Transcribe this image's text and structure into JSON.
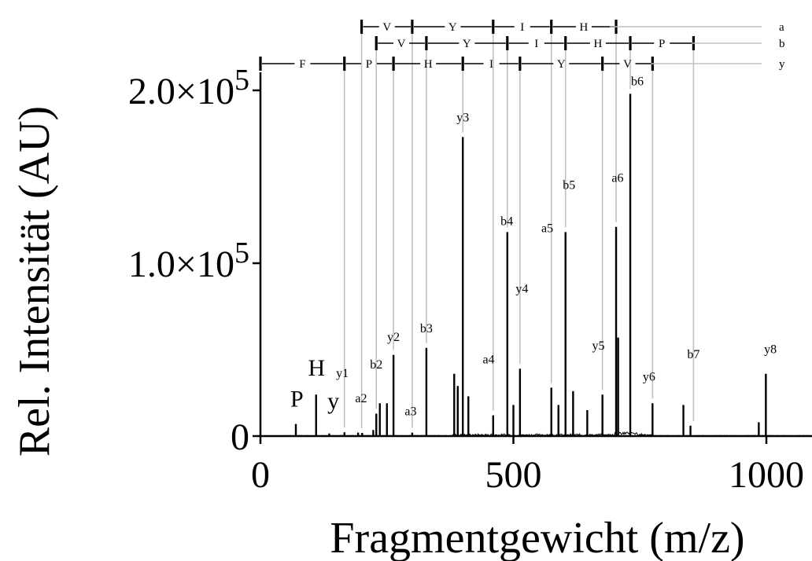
{
  "chart_data": {
    "type": "stem",
    "xlabel": "Fragmentgewicht (m/z)",
    "ylabel": "Rel. Intensität (AU)",
    "xlim": [
      0,
      1090
    ],
    "ylim": [
      0,
      200000
    ],
    "xticks": [
      {
        "value": 0,
        "label": "0"
      },
      {
        "value": 500,
        "label": "500"
      },
      {
        "value": 1000,
        "label": "1000"
      }
    ],
    "yticks": [
      {
        "value": 0,
        "label": "0"
      },
      {
        "value": 100000,
        "label": "1.0×10",
        "exp": "5"
      },
      {
        "value": 200000,
        "label": "2.0×10",
        "exp": "5"
      }
    ],
    "peaks": [
      {
        "mz": 70,
        "intensity": 7000,
        "label": "P"
      },
      {
        "mz": 110,
        "intensity": 24000,
        "label": "H"
      },
      {
        "mz": 136,
        "intensity": 1500,
        "label": "Y"
      },
      {
        "mz": 166,
        "intensity": 2200,
        "label": "y1"
      },
      {
        "mz": 193,
        "intensity": 2000,
        "label": ""
      },
      {
        "mz": 201,
        "intensity": 1800,
        "label": "a2"
      },
      {
        "mz": 223,
        "intensity": 3500,
        "label": ""
      },
      {
        "mz": 229,
        "intensity": 13000,
        "label": "b2"
      },
      {
        "mz": 236,
        "intensity": 19000,
        "label": ""
      },
      {
        "mz": 250,
        "intensity": 19000,
        "label": ""
      },
      {
        "mz": 263,
        "intensity": 47000,
        "label": "y2"
      },
      {
        "mz": 300,
        "intensity": 2000,
        "label": "a3"
      },
      {
        "mz": 328,
        "intensity": 51000,
        "label": "b3"
      },
      {
        "mz": 383,
        "intensity": 36000,
        "label": ""
      },
      {
        "mz": 390,
        "intensity": 29000,
        "label": ""
      },
      {
        "mz": 400,
        "intensity": 173000,
        "label": "y3"
      },
      {
        "mz": 411,
        "intensity": 23000,
        "label": ""
      },
      {
        "mz": 460,
        "intensity": 12000,
        "label": "a4"
      },
      {
        "mz": 488,
        "intensity": 118000,
        "label": "b4"
      },
      {
        "mz": 500,
        "intensity": 18000,
        "label": ""
      },
      {
        "mz": 513,
        "intensity": 39000,
        "label": "y4"
      },
      {
        "mz": 575,
        "intensity": 28000,
        "label": "a5"
      },
      {
        "mz": 589,
        "intensity": 18000,
        "label": ""
      },
      {
        "mz": 603,
        "intensity": 118000,
        "label": "b5"
      },
      {
        "mz": 618,
        "intensity": 26000,
        "label": ""
      },
      {
        "mz": 646,
        "intensity": 15000,
        "label": ""
      },
      {
        "mz": 676,
        "intensity": 24000,
        "label": "y5"
      },
      {
        "mz": 703,
        "intensity": 121000,
        "label": "a6"
      },
      {
        "mz": 707,
        "intensity": 57000,
        "label": ""
      },
      {
        "mz": 731,
        "intensity": 198000,
        "label": "b6"
      },
      {
        "mz": 775,
        "intensity": 19000,
        "label": "y6"
      },
      {
        "mz": 836,
        "intensity": 18000,
        "label": ""
      },
      {
        "mz": 850,
        "intensity": 6000,
        "label": "b7"
      },
      {
        "mz": 985,
        "intensity": 8000,
        "label": ""
      },
      {
        "mz": 999,
        "intensity": 36000,
        "label": "y8"
      }
    ],
    "fragment_labels": [
      {
        "text": "P",
        "mz": 72,
        "intensity": 17000,
        "big": true
      },
      {
        "text": "H",
        "mz": 111,
        "intensity": 35000,
        "big": true
      },
      {
        "text": "y",
        "mz": 144,
        "intensity": 16000,
        "big": true
      },
      {
        "text": "y1",
        "mz": 162,
        "intensity": 34000
      },
      {
        "text": "a2",
        "mz": 199,
        "intensity": 19500
      },
      {
        "text": "b2",
        "mz": 229,
        "intensity": 39000
      },
      {
        "text": "y2",
        "mz": 263,
        "intensity": 55000
      },
      {
        "text": "a3",
        "mz": 297,
        "intensity": 12000
      },
      {
        "text": "b3",
        "mz": 328,
        "intensity": 60000
      },
      {
        "text": "y3",
        "mz": 400,
        "intensity": 182000
      },
      {
        "text": "a4",
        "mz": 451,
        "intensity": 42000
      },
      {
        "text": "b4",
        "mz": 487,
        "intensity": 122000
      },
      {
        "text": "y4",
        "mz": 517,
        "intensity": 83000
      },
      {
        "text": "a5",
        "mz": 567,
        "intensity": 118000
      },
      {
        "text": "b5",
        "mz": 610,
        "intensity": 143000
      },
      {
        "text": "y5",
        "mz": 668,
        "intensity": 50000
      },
      {
        "text": "a6",
        "mz": 706,
        "intensity": 147000
      },
      {
        "text": "b6",
        "mz": 745,
        "intensity": 203000
      },
      {
        "text": "y6",
        "mz": 768,
        "intensity": 32000
      },
      {
        "text": "b7",
        "mz": 856,
        "intensity": 45000
      },
      {
        "text": "y8",
        "mz": 1008,
        "intensity": 48000
      }
    ],
    "sequence_ladders": [
      {
        "ion": "a",
        "breaks": [
          200,
          300,
          460,
          575,
          703
        ],
        "residues": [
          "V",
          "Y",
          "I",
          "H"
        ]
      },
      {
        "ion": "b",
        "breaks": [
          229,
          328,
          488,
          603,
          731,
          856
        ],
        "residues": [
          "V",
          "Y",
          "I",
          "H",
          "P"
        ]
      },
      {
        "ion": "y",
        "breaks": [
          0,
          166,
          263,
          400,
          513,
          676,
          775
        ],
        "residues": [
          "F",
          "P",
          "H",
          "I",
          "Y",
          "V"
        ]
      }
    ],
    "ladder_guides": [
      166,
      200,
      229,
      263,
      300,
      328,
      400,
      460,
      488,
      513,
      575,
      603,
      676,
      703,
      731,
      775,
      856
    ]
  }
}
